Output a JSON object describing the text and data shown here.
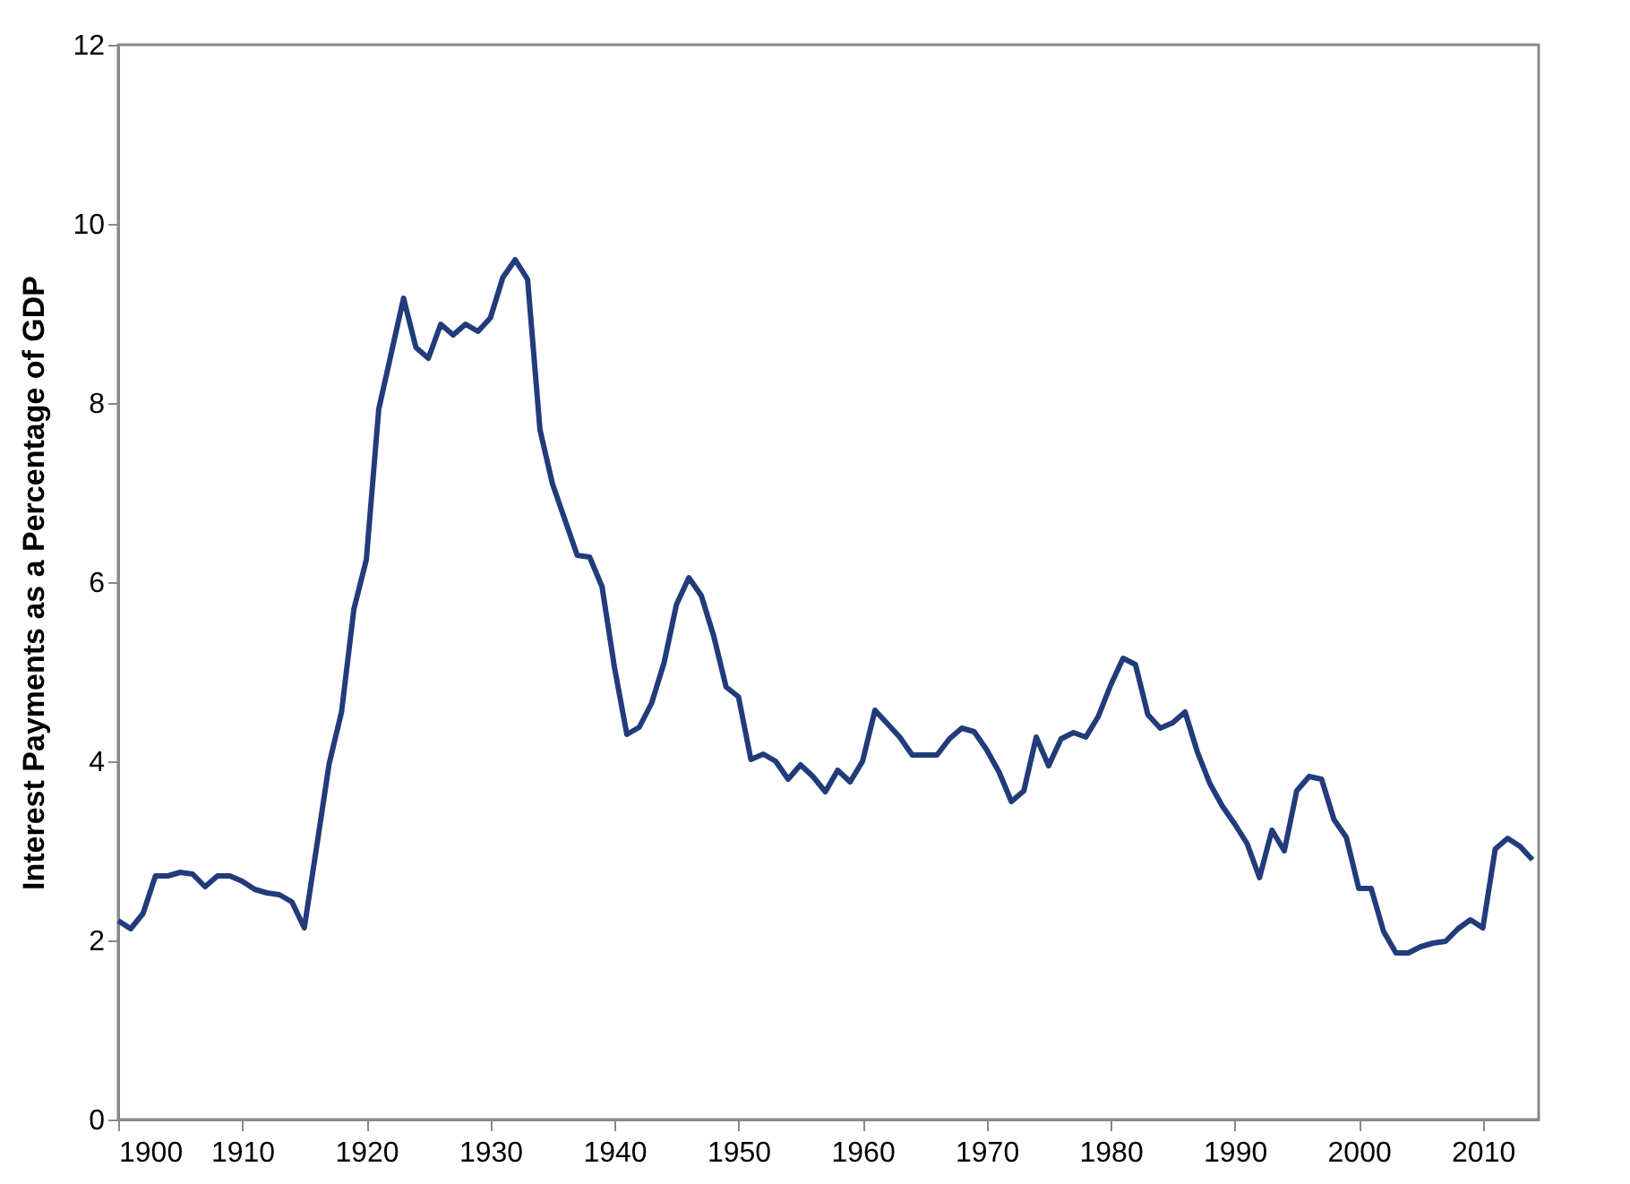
{
  "chart_data": {
    "type": "line",
    "ylabel": "Interest Payments as a Percentage of GDP",
    "x": [
      1900,
      1901,
      1902,
      1903,
      1904,
      1905,
      1906,
      1907,
      1908,
      1909,
      1910,
      1911,
      1912,
      1913,
      1914,
      1915,
      1916,
      1917,
      1918,
      1919,
      1920,
      1921,
      1922,
      1923,
      1924,
      1925,
      1926,
      1927,
      1928,
      1929,
      1930,
      1931,
      1932,
      1933,
      1934,
      1935,
      1936,
      1937,
      1938,
      1939,
      1940,
      1941,
      1942,
      1943,
      1944,
      1945,
      1946,
      1947,
      1948,
      1949,
      1950,
      1951,
      1952,
      1953,
      1954,
      1955,
      1956,
      1957,
      1958,
      1959,
      1960,
      1961,
      1962,
      1963,
      1964,
      1965,
      1966,
      1967,
      1968,
      1969,
      1970,
      1971,
      1972,
      1973,
      1974,
      1975,
      1976,
      1977,
      1978,
      1979,
      1980,
      1981,
      1982,
      1983,
      1984,
      1985,
      1986,
      1987,
      1988,
      1989,
      1990,
      1991,
      1992,
      1993,
      1994,
      1995,
      1996,
      1997,
      1998,
      1999,
      2000,
      2001,
      2002,
      2003,
      2004,
      2005,
      2006,
      2007,
      2008,
      2009,
      2010,
      2011,
      2012,
      2013,
      2014
    ],
    "series": [
      {
        "color": "#223b7a",
        "values": [
          2.22,
          2.13,
          2.3,
          2.72,
          2.72,
          2.76,
          2.74,
          2.6,
          2.72,
          2.72,
          2.66,
          2.57,
          2.53,
          2.51,
          2.43,
          2.14,
          3.05,
          3.97,
          4.55,
          5.7,
          6.25,
          7.93,
          8.55,
          9.17,
          8.62,
          8.5,
          8.88,
          8.76,
          8.88,
          8.8,
          8.95,
          9.4,
          9.6,
          9.38,
          7.7,
          7.1,
          6.7,
          6.3,
          6.28,
          5.95,
          5.05,
          4.3,
          4.38,
          4.65,
          5.1,
          5.75,
          6.05,
          5.85,
          5.4,
          4.83,
          4.72,
          4.02,
          4.08,
          4.0,
          3.8,
          3.96,
          3.83,
          3.66,
          3.9,
          3.77,
          4.0,
          4.57,
          4.42,
          4.27,
          4.07,
          4.07,
          4.07,
          4.25,
          4.37,
          4.33,
          4.13,
          3.88,
          3.55,
          3.67,
          4.27,
          3.95,
          4.25,
          4.32,
          4.27,
          4.5,
          4.85,
          5.15,
          5.08,
          4.52,
          4.37,
          4.43,
          4.55,
          4.1,
          3.75,
          3.5,
          3.3,
          3.08,
          2.7,
          3.23,
          3.0,
          3.67,
          3.83,
          3.8,
          3.35,
          3.15,
          2.58,
          2.58,
          2.1,
          1.86,
          1.86,
          1.93,
          1.97,
          1.99,
          2.13,
          2.23,
          2.14,
          3.02,
          3.14,
          3.05,
          2.9
        ]
      }
    ],
    "xlim": [
      1900,
      2014.5
    ],
    "xticks": [
      1900,
      1910,
      1920,
      1930,
      1940,
      1950,
      1960,
      1970,
      1980,
      1990,
      2000,
      2010
    ],
    "ylim": [
      0,
      12
    ],
    "yticks": [
      0,
      2,
      4,
      6,
      8,
      10,
      12
    ],
    "grid": false,
    "legend": false,
    "marker": "none",
    "line_style": "solid"
  }
}
